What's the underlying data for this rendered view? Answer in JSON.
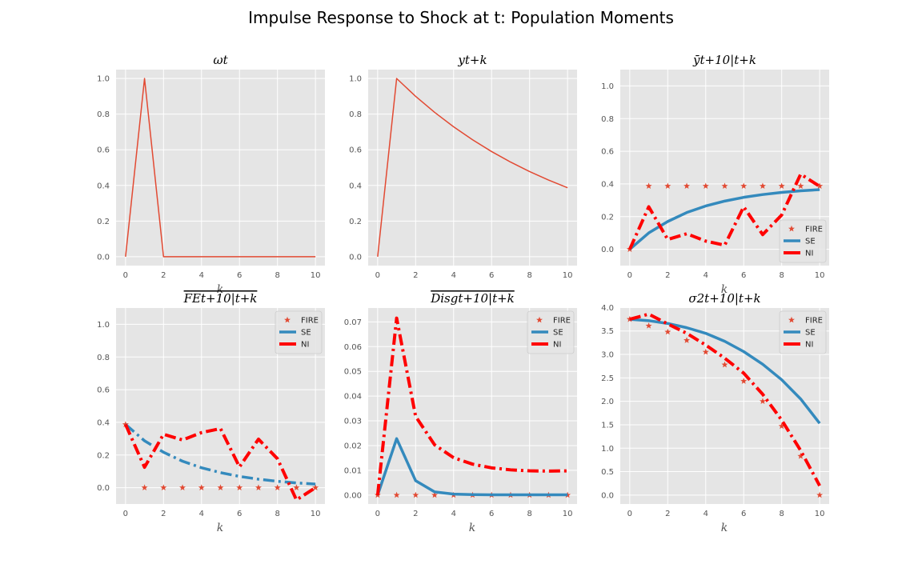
{
  "figure_title": "Impulse Response to Shock at t: Population Moments",
  "colors": {
    "FIRE": "#E24A33",
    "SE": "#348ABD",
    "NI": "#FF0000",
    "line": "#E24A33",
    "panel_bg": "#E5E5E5",
    "grid": "#FFFFFF"
  },
  "chart_data": [
    {
      "type": "line",
      "title": "ωt",
      "xlabel": "k",
      "x": [
        0,
        1,
        2,
        3,
        4,
        5,
        6,
        7,
        8,
        9,
        10
      ],
      "xlim": [
        -0.5,
        10.5
      ],
      "ylim": [
        -0.05,
        1.05
      ],
      "xticks": [
        "0",
        "2",
        "4",
        "6",
        "8",
        "10"
      ],
      "yticks": [
        "0.0",
        "0.2",
        "0.4",
        "0.6",
        "0.8",
        "1.0"
      ],
      "legend": "none",
      "series": [
        {
          "name": "",
          "style": "line",
          "values": [
            0,
            1,
            0,
            0,
            0,
            0,
            0,
            0,
            0,
            0,
            0
          ]
        }
      ]
    },
    {
      "type": "line",
      "title": "yt+k",
      "xlabel": "",
      "x": [
        0,
        1,
        2,
        3,
        4,
        5,
        6,
        7,
        8,
        9,
        10
      ],
      "xlim": [
        -0.5,
        10.5
      ],
      "ylim": [
        -0.05,
        1.05
      ],
      "xticks": [
        "0",
        "2",
        "4",
        "6",
        "8",
        "10"
      ],
      "yticks": [
        "0.0",
        "0.2",
        "0.4",
        "0.6",
        "0.8",
        "1.0"
      ],
      "legend": "none",
      "series": [
        {
          "name": "",
          "style": "line",
          "values": [
            0,
            1.0,
            0.9,
            0.81,
            0.729,
            0.656,
            0.59,
            0.531,
            0.478,
            0.43,
            0.387
          ]
        }
      ]
    },
    {
      "type": "line",
      "title": "ȳt+10|t+k",
      "xlabel": "k",
      "x": [
        0,
        1,
        2,
        3,
        4,
        5,
        6,
        7,
        8,
        9,
        10
      ],
      "xlim": [
        -0.5,
        10.5
      ],
      "ylim": [
        -0.1,
        1.1
      ],
      "xticks": [
        "0",
        "2",
        "4",
        "6",
        "8",
        "10"
      ],
      "yticks": [
        "0.0",
        "0.2",
        "0.4",
        "0.6",
        "0.8",
        "1.0"
      ],
      "legend": "bottom-right",
      "series": [
        {
          "name": "FIRE",
          "style": "star",
          "values": [
            0.0,
            0.387,
            0.387,
            0.387,
            0.387,
            0.387,
            0.387,
            0.387,
            0.387,
            0.387,
            0.387
          ]
        },
        {
          "name": "SE",
          "style": "solid",
          "values": [
            0.0,
            0.1,
            0.17,
            0.225,
            0.265,
            0.295,
            0.318,
            0.335,
            0.348,
            0.358,
            0.365
          ]
        },
        {
          "name": "NI",
          "style": "dashdot",
          "values": [
            0.0,
            0.26,
            0.06,
            0.095,
            0.05,
            0.025,
            0.26,
            0.09,
            0.21,
            0.46,
            0.385
          ]
        }
      ]
    },
    {
      "type": "line",
      "title": "FEt+10|t+k",
      "title_overline": true,
      "xlabel": "k",
      "x": [
        0,
        1,
        2,
        3,
        4,
        5,
        6,
        7,
        8,
        9,
        10
      ],
      "xlim": [
        -0.5,
        10.5
      ],
      "ylim": [
        -0.1,
        1.1
      ],
      "xticks": [
        "0",
        "2",
        "4",
        "6",
        "8",
        "10"
      ],
      "yticks": [
        "0.0",
        "0.2",
        "0.4",
        "0.6",
        "0.8",
        "1.0"
      ],
      "legend": "top-right",
      "series": [
        {
          "name": "FIRE",
          "style": "star",
          "values": [
            0.387,
            0,
            0,
            0,
            0,
            0,
            0,
            0,
            0,
            0,
            0
          ]
        },
        {
          "name": "SE",
          "style": "dashdot",
          "values": [
            0.387,
            0.287,
            0.217,
            0.162,
            0.122,
            0.092,
            0.069,
            0.052,
            0.039,
            0.029,
            0.022
          ]
        },
        {
          "name": "NI",
          "style": "dashdot",
          "values": [
            0.387,
            0.125,
            0.327,
            0.292,
            0.337,
            0.362,
            0.127,
            0.297,
            0.177,
            -0.075,
            0.0
          ]
        }
      ]
    },
    {
      "type": "line",
      "title": "Disgt+10|t+k",
      "title_overline": true,
      "xlabel": "k",
      "x": [
        0,
        1,
        2,
        3,
        4,
        5,
        6,
        7,
        8,
        9,
        10
      ],
      "xlim": [
        -0.5,
        10.5
      ],
      "ylim": [
        -0.0036,
        0.0756
      ],
      "xticks": [
        "0",
        "2",
        "4",
        "6",
        "8",
        "10"
      ],
      "yticks": [
        "0.00",
        "0.01",
        "0.02",
        "0.03",
        "0.04",
        "0.05",
        "0.06",
        "0.07"
      ],
      "legend": "top-right",
      "series": [
        {
          "name": "FIRE",
          "style": "star",
          "values": [
            0,
            0,
            0,
            0,
            0,
            0,
            0,
            0,
            0,
            0,
            0
          ]
        },
        {
          "name": "SE",
          "style": "solid",
          "values": [
            0.0,
            0.0228,
            0.0058,
            0.0013,
            0.0004,
            0.0002,
            0.0001,
            0.0001,
            0.0001,
            0.0001,
            0.0001
          ]
        },
        {
          "name": "NI",
          "style": "dashdot",
          "values": [
            0.0,
            0.0715,
            0.0318,
            0.0203,
            0.0151,
            0.0125,
            0.011,
            0.0102,
            0.0098,
            0.0097,
            0.0098
          ]
        }
      ]
    },
    {
      "type": "line",
      "title": "σ2t+10|t+k",
      "title_bar": true,
      "xlabel": "k",
      "x": [
        0,
        1,
        2,
        3,
        4,
        5,
        6,
        7,
        8,
        9,
        10
      ],
      "xlim": [
        -0.5,
        10.5
      ],
      "ylim": [
        -0.19,
        3.99
      ],
      "xticks": [
        "0",
        "2",
        "4",
        "6",
        "8",
        "10"
      ],
      "yticks": [
        "0.0",
        "0.5",
        "1.0",
        "1.5",
        "2.0",
        "2.5",
        "3.0",
        "3.5",
        "4.0"
      ],
      "legend": "top-right",
      "series": [
        {
          "name": "FIRE",
          "style": "star",
          "values": [
            3.75,
            3.61,
            3.48,
            3.3,
            3.05,
            2.78,
            2.43,
            2.0,
            1.47,
            0.83,
            0.0
          ]
        },
        {
          "name": "SE",
          "style": "solid",
          "values": [
            3.75,
            3.72,
            3.66,
            3.57,
            3.45,
            3.28,
            3.06,
            2.79,
            2.46,
            2.05,
            1.53
          ]
        },
        {
          "name": "NI",
          "style": "dashdot",
          "values": [
            3.75,
            3.86,
            3.65,
            3.45,
            3.2,
            2.92,
            2.6,
            2.15,
            1.6,
            0.95,
            0.2
          ]
        }
      ]
    }
  ]
}
